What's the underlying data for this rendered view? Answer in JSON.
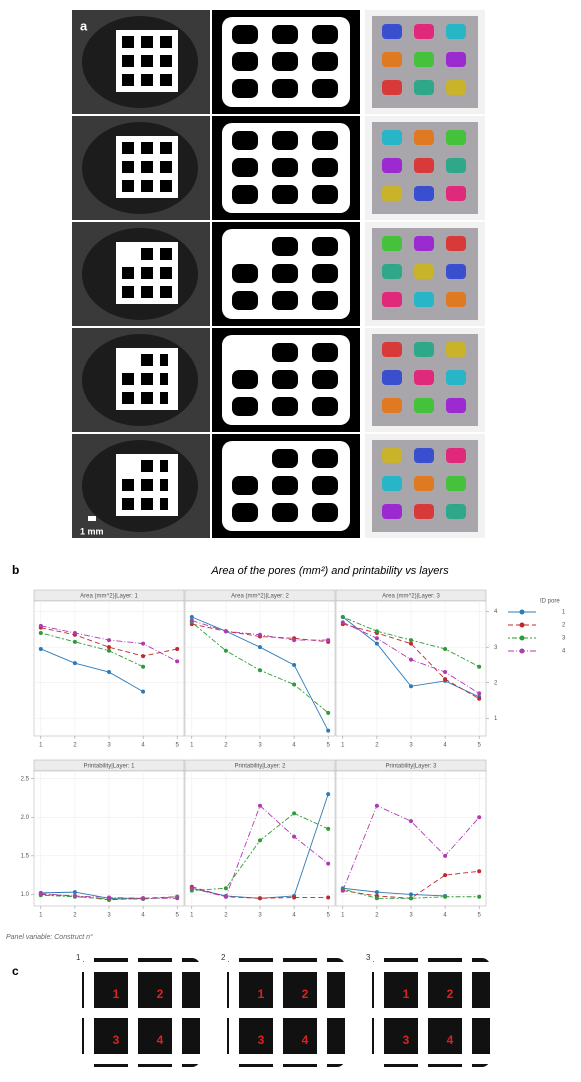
{
  "panel_labels": [
    "a",
    "b",
    "c"
  ],
  "scale_bar": "1 mm",
  "title": "Area of the pores (mm²) and printability vs layers",
  "legend": {
    "title": "ID pore",
    "entries": [
      {
        "name": "1",
        "color": "#2b7bba"
      },
      {
        "name": "2",
        "color": "#c0282d"
      },
      {
        "name": "3",
        "color": "#2e9a3a"
      },
      {
        "name": "4",
        "color": "#b03ab0"
      }
    ]
  },
  "chart_data": [
    {
      "type": "line",
      "title": "Area (mm^2)|Layer: 1",
      "x": [
        1,
        2,
        3,
        4,
        5
      ],
      "xlim": [
        0.8,
        5.2
      ],
      "xticks": [
        1,
        2,
        3,
        4,
        5
      ],
      "ylim": [
        0.5,
        4.3
      ],
      "grid": true,
      "series": [
        {
          "values": [
            2.95,
            2.55,
            2.3,
            1.75,
            null
          ]
        },
        {
          "values": [
            3.55,
            3.35,
            3.0,
            2.75,
            2.95
          ]
        },
        {
          "values": [
            3.4,
            3.15,
            2.9,
            2.45,
            null
          ]
        },
        {
          "values": [
            3.6,
            3.4,
            3.2,
            3.1,
            2.6
          ]
        }
      ]
    },
    {
      "type": "line",
      "title": "Area (mm^2)|Layer: 2",
      "x": [
        1,
        2,
        3,
        4,
        5
      ],
      "xlim": [
        0.8,
        5.2
      ],
      "xticks": [
        1,
        2,
        3,
        4,
        5
      ],
      "ylim": [
        0.5,
        4.3
      ],
      "grid": true,
      "series": [
        {
          "values": [
            3.85,
            3.45,
            3.0,
            2.5,
            0.65
          ]
        },
        {
          "values": [
            3.65,
            3.45,
            3.3,
            3.25,
            3.15
          ]
        },
        {
          "values": [
            3.7,
            2.9,
            2.35,
            1.95,
            1.15
          ]
        },
        {
          "values": [
            3.75,
            3.45,
            3.35,
            3.2,
            3.2
          ]
        }
      ]
    },
    {
      "type": "line",
      "title": "Area (mm^2)|Layer: 3",
      "x": [
        1,
        2,
        3,
        4,
        5
      ],
      "xlim": [
        0.8,
        5.2
      ],
      "xticks": [
        1,
        2,
        3,
        4,
        5
      ],
      "ylim": [
        0.5,
        4.3
      ],
      "yticks": [
        1,
        2,
        3,
        4
      ],
      "yaxis": "right",
      "grid": true,
      "series": [
        {
          "values": [
            3.85,
            3.1,
            1.9,
            2.05,
            1.6
          ]
        },
        {
          "values": [
            3.65,
            3.4,
            3.1,
            2.1,
            1.55
          ]
        },
        {
          "values": [
            3.85,
            3.45,
            3.2,
            2.95,
            2.45
          ]
        },
        {
          "values": [
            3.7,
            3.25,
            2.65,
            2.3,
            1.7
          ]
        }
      ]
    },
    {
      "type": "line",
      "title": "Printability|Layer: 1",
      "x": [
        1,
        2,
        3,
        4,
        5
      ],
      "xlim": [
        0.8,
        5.2
      ],
      "xticks": [
        1,
        2,
        3,
        4,
        5
      ],
      "ylim": [
        0.85,
        2.6
      ],
      "yticks": [
        {
          "value": 1,
          "label": "1.0"
        },
        1.5,
        {
          "value": 2,
          "label": "2.0"
        },
        2.5
      ],
      "yaxis": "left",
      "grid": true,
      "series": [
        {
          "values": [
            1.02,
            1.03,
            0.95,
            0.95,
            null
          ]
        },
        {
          "values": [
            1.0,
            0.98,
            0.93,
            0.95,
            0.97
          ]
        },
        {
          "values": [
            0.99,
            0.97,
            0.94,
            0.94,
            0.97
          ]
        },
        {
          "values": [
            1.01,
            0.98,
            0.96,
            0.95,
            0.95
          ]
        }
      ]
    },
    {
      "type": "line",
      "title": "Printability|Layer: 2",
      "x": [
        1,
        2,
        3,
        4,
        5
      ],
      "xlim": [
        0.8,
        5.2
      ],
      "xticks": [
        1,
        2,
        3,
        4,
        5
      ],
      "ylim": [
        0.85,
        2.6
      ],
      "grid": true,
      "series": [
        {
          "values": [
            1.08,
            0.98,
            0.95,
            0.98,
            2.3
          ]
        },
        {
          "values": [
            1.1,
            0.97,
            0.95,
            0.96,
            0.96
          ]
        },
        {
          "values": [
            1.05,
            1.08,
            1.7,
            2.05,
            1.85
          ]
        },
        {
          "values": [
            1.08,
            0.97,
            2.15,
            1.75,
            1.4
          ]
        }
      ]
    },
    {
      "type": "line",
      "title": "Printability|Layer: 3",
      "x": [
        1,
        2,
        3,
        4,
        5
      ],
      "xlim": [
        0.8,
        5.2
      ],
      "xticks": [
        1,
        2,
        3,
        4,
        5
      ],
      "ylim": [
        0.85,
        2.6
      ],
      "grid": true,
      "series": [
        {
          "values": [
            1.08,
            1.03,
            1.0,
            0.98,
            null
          ]
        },
        {
          "values": [
            1.05,
            0.98,
            0.95,
            1.25,
            1.3
          ]
        },
        {
          "values": [
            1.07,
            0.95,
            0.95,
            0.97,
            0.97
          ]
        },
        {
          "values": [
            1.05,
            2.15,
            1.95,
            1.5,
            2.0
          ]
        }
      ]
    }
  ],
  "caption": "Panel variable: Construct n°",
  "panel_c": [
    {
      "label": "1",
      "pores": [
        "1",
        "2",
        "3",
        "4"
      ]
    },
    {
      "label": "2",
      "pores": [
        "1",
        "2",
        "3",
        "4"
      ]
    },
    {
      "label": "3",
      "pores": [
        "1",
        "2",
        "3",
        "4"
      ]
    }
  ]
}
